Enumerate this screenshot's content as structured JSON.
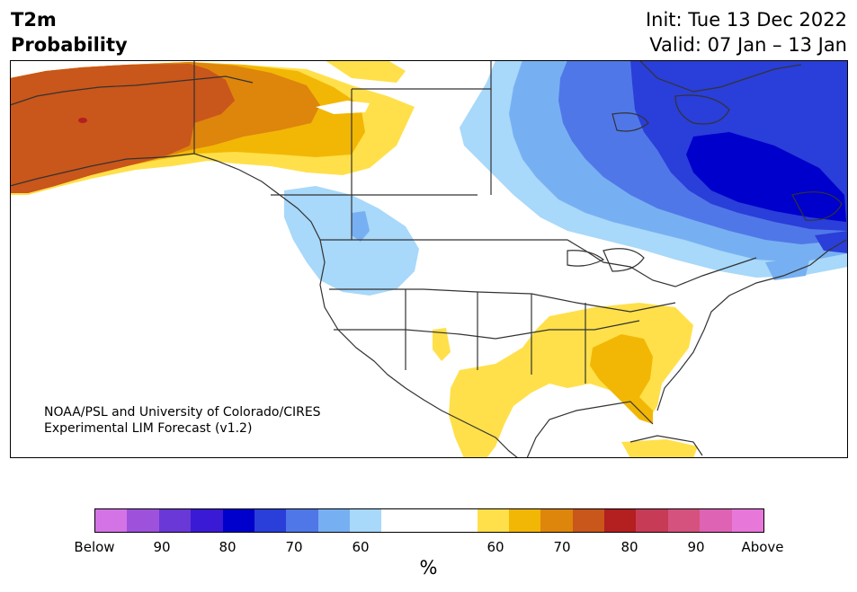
{
  "title": {
    "line1": "T2m",
    "line2": "Probability",
    "init": "Init: Tue 13 Dec 2022",
    "valid": "Valid: 07 Jan – 13 Jan"
  },
  "credit": {
    "line1": "NOAA/PSL and University of Colorado/CIRES",
    "line2": "Experimental LIM Forecast (v1.2)"
  },
  "colorbar": {
    "colors": [
      "#d473e6",
      "#9e52dc",
      "#6a38d6",
      "#3a1ad4",
      "#0000cc",
      "#2a3ed9",
      "#5077e8",
      "#77b0f2",
      "#a8d8fa",
      "#ffffff",
      "#ffe04a",
      "#f2b705",
      "#de850c",
      "#c9561a",
      "#b41f20",
      "#c83b57",
      "#d6527e",
      "#de63b4",
      "#e877da"
    ],
    "labels": [
      "Below",
      "90",
      "80",
      "70",
      "60",
      "60",
      "70",
      "80",
      "90",
      "Above"
    ],
    "unit": "%"
  },
  "map_regions": {
    "alaska": "above 70%",
    "western_canada": "above 60-70%",
    "eastern_canada": "below 80-90%",
    "pacific_northwest": "below 60%",
    "southeast_us": "above 60-70%"
  }
}
